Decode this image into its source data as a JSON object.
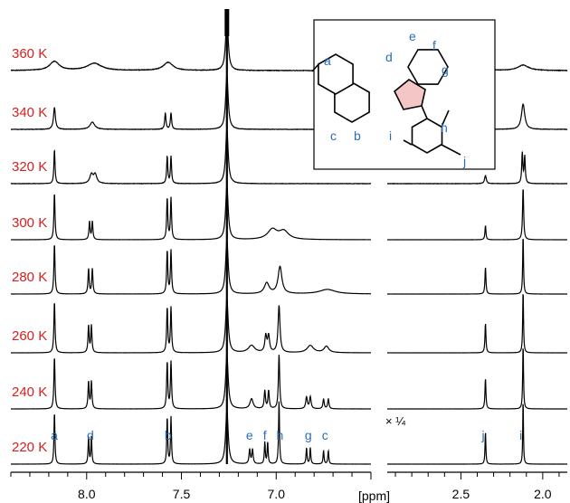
{
  "chart_data": {
    "type": "line",
    "xlabel": "[ppm]",
    "x_axis_reversed": true,
    "panels": [
      {
        "name": "aromatic",
        "xlim": [
          8.4,
          6.5
        ],
        "ticks": [
          "8.0",
          "7.5",
          "7.0"
        ],
        "tick_values": [
          8.0,
          7.5,
          7.0
        ]
      },
      {
        "name": "aliphatic",
        "xlim": [
          2.95,
          1.85
        ],
        "ticks": [
          "2.5",
          "2.0"
        ],
        "tick_values": [
          2.5,
          2.0
        ]
      }
    ],
    "scale_note": "× ¼",
    "solvent_peak_ppm": 7.26,
    "series": [
      {
        "name": "360 K",
        "temperature_K": 360
      },
      {
        "name": "340 K",
        "temperature_K": 340
      },
      {
        "name": "320 K",
        "temperature_K": 320
      },
      {
        "name": "300 K",
        "temperature_K": 300
      },
      {
        "name": "280 K",
        "temperature_K": 280
      },
      {
        "name": "260 K",
        "temperature_K": 260
      },
      {
        "name": "240 K",
        "temperature_K": 240
      },
      {
        "name": "220 K",
        "temperature_K": 220
      }
    ],
    "peak_labels": [
      {
        "label": "a",
        "ppm": 8.17
      },
      {
        "label": "d",
        "ppm": 7.98
      },
      {
        "label": "b",
        "ppm": 7.57
      },
      {
        "label": "e",
        "ppm": 7.14
      },
      {
        "label": "f",
        "ppm": 7.05
      },
      {
        "label": "h",
        "ppm": 6.98
      },
      {
        "label": "g",
        "ppm": 6.83
      },
      {
        "label": "c",
        "ppm": 6.74
      },
      {
        "label": "j",
        "ppm": 2.35
      },
      {
        "label": "i",
        "ppm": 2.12
      }
    ],
    "structure_labels": [
      "a",
      "b",
      "c",
      "d",
      "e",
      "f",
      "g",
      "h",
      "i",
      "j"
    ]
  },
  "colors": {
    "temperature_label": "#d62020",
    "peak_label": "#2a6ebb",
    "trace": "#000000",
    "five_ring": "#f4c6c6"
  }
}
